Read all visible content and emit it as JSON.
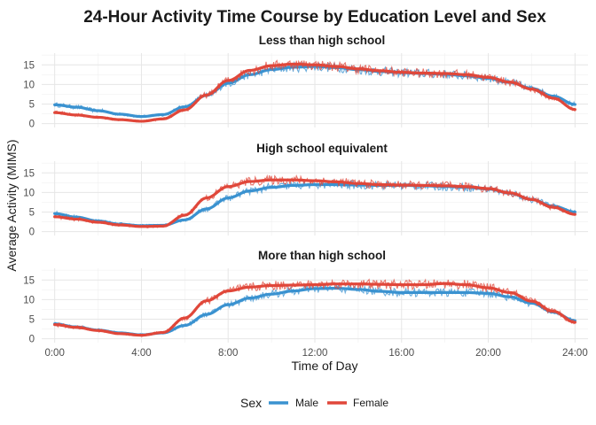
{
  "chart_data": {
    "type": "line",
    "title": "24-Hour Activity Time Course by Education Level and Sex",
    "xlabel": "Time of Day",
    "ylabel": "Average Activity (MIMS)",
    "xlim": [
      -0.6,
      24.6
    ],
    "ylim": [
      -1,
      18
    ],
    "x_ticks": [
      0,
      4,
      8,
      12,
      16,
      20,
      24
    ],
    "x_tick_labels": [
      "0:00",
      "4:00",
      "8:00",
      "12:00",
      "16:00",
      "20:00",
      "24:00"
    ],
    "y_ticks": [
      0,
      5,
      10,
      15
    ],
    "y_tick_labels": [
      "0",
      "5",
      "10",
      "15"
    ],
    "grid": true,
    "legend": {
      "title": "Sex",
      "position": "bottom",
      "entries": [
        "Male",
        "Female"
      ]
    },
    "colors": {
      "Male": "#3a92d0",
      "Female": "#e0473a"
    },
    "panels": [
      {
        "label": "Less than high school",
        "x": [
          0,
          1,
          2,
          3,
          4,
          5,
          6,
          7,
          8,
          9,
          10,
          11,
          12,
          13,
          14,
          15,
          16,
          17,
          18,
          19,
          20,
          21,
          22,
          23,
          24
        ],
        "series": [
          {
            "name": "Male",
            "values": [
              4.8,
              4.2,
              3.3,
              2.4,
              1.8,
              2.3,
              4.3,
              7.2,
              10.3,
              12.5,
              13.8,
              14.4,
              14.6,
              14.3,
              13.8,
              13.3,
              13.0,
              12.8,
              12.6,
              12.2,
              11.6,
              10.5,
              9.0,
              7.0,
              4.9
            ]
          },
          {
            "name": "Female",
            "values": [
              2.8,
              2.2,
              1.6,
              1.0,
              0.6,
              1.2,
              3.5,
              7.3,
              11.0,
              13.6,
              14.8,
              15.2,
              15.0,
              14.6,
              14.0,
              13.5,
              13.1,
              12.9,
              12.8,
              12.5,
              11.8,
              10.6,
              8.8,
              6.5,
              3.6
            ]
          }
        ]
      },
      {
        "label": "High school equivalent",
        "x": [
          0,
          1,
          2,
          3,
          4,
          5,
          6,
          7,
          8,
          9,
          10,
          11,
          12,
          13,
          14,
          15,
          16,
          17,
          18,
          19,
          20,
          21,
          22,
          23,
          24
        ],
        "series": [
          {
            "name": "Male",
            "values": [
              4.6,
              3.7,
              2.7,
              1.9,
              1.5,
              1.6,
              3.0,
              5.8,
              8.6,
              10.4,
              11.3,
              11.8,
              12.0,
              12.0,
              11.9,
              11.8,
              11.8,
              11.7,
              11.5,
              11.3,
              10.9,
              9.8,
              8.2,
              6.5,
              5.0
            ]
          },
          {
            "name": "Female",
            "values": [
              3.8,
              3.2,
              2.4,
              1.7,
              1.3,
              1.4,
              4.2,
              8.6,
              11.5,
              12.8,
              13.2,
              13.2,
              13.0,
              12.7,
              12.3,
              12.0,
              11.9,
              11.8,
              11.7,
              11.5,
              11.0,
              9.9,
              8.2,
              6.2,
              4.4
            ]
          }
        ]
      },
      {
        "label": "More than high school",
        "x": [
          0,
          1,
          2,
          3,
          4,
          5,
          6,
          7,
          8,
          9,
          10,
          11,
          12,
          13,
          14,
          15,
          16,
          17,
          18,
          19,
          20,
          21,
          22,
          23,
          24
        ],
        "series": [
          {
            "name": "Male",
            "values": [
              3.8,
              3.0,
              2.2,
              1.5,
              1.0,
              1.5,
              3.4,
              6.2,
              8.7,
              10.4,
              11.4,
              12.2,
              12.8,
              12.9,
              12.6,
              12.1,
              11.8,
              11.8,
              11.8,
              11.8,
              11.6,
              10.7,
              9.1,
              6.8,
              4.6
            ]
          },
          {
            "name": "Female",
            "values": [
              3.6,
              2.9,
              2.1,
              1.3,
              0.9,
              1.6,
              5.3,
              9.7,
              12.2,
              13.2,
              13.6,
              13.7,
              13.8,
              14.0,
              14.0,
              13.9,
              13.8,
              13.8,
              14.1,
              13.8,
              13.0,
              11.8,
              9.6,
              7.0,
              4.2
            ]
          }
        ]
      }
    ]
  }
}
